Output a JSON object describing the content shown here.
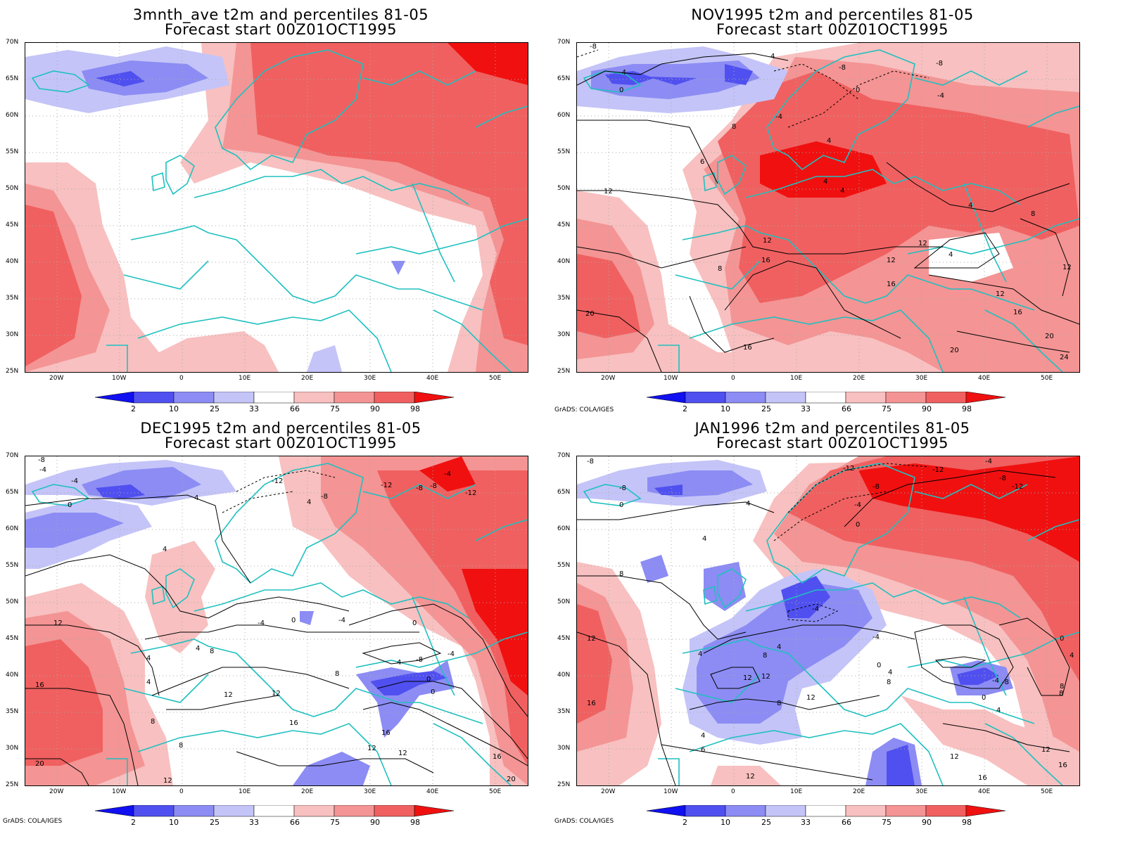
{
  "colors": {
    "p2": "#1010f0",
    "p10": "#5050f0",
    "p25": "#8c8cf4",
    "p33": "#c4c4f8",
    "p66": "#f8c0c0",
    "p75": "#f49494",
    "p90": "#f06060",
    "p98": "#f01010",
    "coast": "#20c0c0",
    "contour": "#000000"
  },
  "lat_labels": [
    "70N",
    "65N",
    "60N",
    "55N",
    "50N",
    "45N",
    "40N",
    "35N",
    "30N",
    "25N"
  ],
  "lon_labels": [
    "20W",
    "10W",
    "0",
    "10E",
    "20E",
    "30E",
    "40E",
    "50E"
  ],
  "colorbar": {
    "labels": [
      "2",
      "10",
      "25",
      "33",
      "66",
      "75",
      "90",
      "98"
    ]
  },
  "credit": "GrADS: COLA/IGES",
  "panels": [
    {
      "title_line1": "3mnth_ave t2m and percentiles 81-05",
      "title_line2": "Forecast start 00Z01OCT1995",
      "contour_labels": [],
      "show_credit": false
    },
    {
      "title_line1": "NOV1995 t2m and percentiles 81-05",
      "title_line2": "Forecast start 00Z01OCT1995",
      "contour_labels": [
        "-8",
        "-4",
        "4",
        "0",
        "-8",
        "-8",
        "0",
        "-4",
        "-4",
        "8",
        "4",
        "6",
        "4",
        "4",
        "12",
        "4",
        "12",
        "12",
        "8",
        "8",
        "16",
        "12",
        "4",
        "12",
        "16",
        "12",
        "16",
        "20",
        "20",
        "16",
        "24",
        "20"
      ],
      "show_credit": true
    },
    {
      "title_line1": "DEC1995 t2m and percentiles 81-05",
      "title_line2": "Forecast start 00Z01OCT1995",
      "contour_labels": [
        "-8",
        "-4",
        "-4",
        "0",
        "4",
        "-12",
        "-8",
        "-12",
        "-8",
        "-8",
        "-4",
        "-12",
        "4",
        "4",
        "-4",
        "0",
        "-4",
        "0",
        "4",
        "8",
        "4",
        "-4",
        "-8",
        "4",
        "0",
        "12",
        "4",
        "8",
        "12",
        "12",
        "16",
        "8",
        "16",
        "12",
        "12",
        "20",
        "16",
        "16",
        "20",
        "8",
        "12",
        "0"
      ],
      "show_credit": true
    },
    {
      "title_line1": "JAN1996 t2m and percentiles 81-05",
      "title_line2": "Forecast start 00Z01OCT1995",
      "contour_labels": [
        "-8",
        "-8",
        "0",
        "-12",
        "-8",
        "-4",
        "0",
        "-12",
        "-4",
        "-8",
        "-12",
        "4",
        "4",
        "8",
        "4",
        "8",
        "-4",
        "4",
        "12",
        "12",
        "8",
        "-4",
        "0",
        "4",
        "8",
        "-4",
        "-8",
        "0",
        "4",
        "12",
        "8",
        "6",
        "4",
        "12",
        "12",
        "16",
        "12",
        "16",
        "0",
        "4",
        "8",
        "16",
        "12"
      ],
      "show_credit": true
    }
  ]
}
